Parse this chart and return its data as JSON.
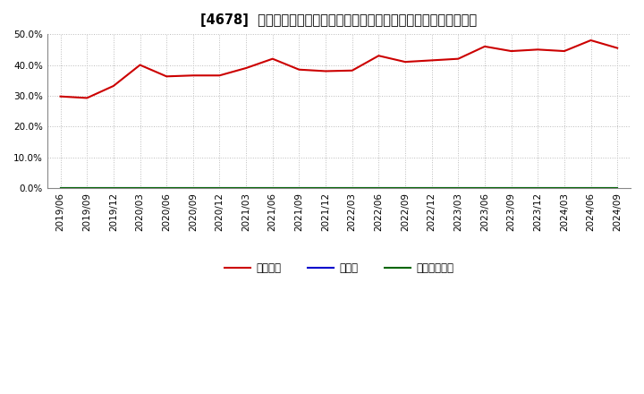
{
  "title": "[4678]  自己資本、のれん、繰延税金資産の総資産に対する比率の推移",
  "x_labels": [
    "2019/06",
    "2019/09",
    "2019/12",
    "2020/03",
    "2020/06",
    "2020/09",
    "2020/12",
    "2021/03",
    "2021/06",
    "2021/09",
    "2021/12",
    "2022/03",
    "2022/06",
    "2022/09",
    "2022/12",
    "2023/03",
    "2023/06",
    "2023/09",
    "2023/12",
    "2024/03",
    "2024/06",
    "2024/09"
  ],
  "jiko_shihon": [
    0.298,
    0.293,
    0.332,
    0.4,
    0.363,
    0.366,
    0.366,
    0.39,
    0.42,
    0.385,
    0.38,
    0.382,
    0.43,
    0.41,
    0.415,
    0.42,
    0.46,
    0.445,
    0.45,
    0.445,
    0.48,
    0.455
  ],
  "noren": [
    0,
    0,
    0,
    0,
    0,
    0,
    0,
    0,
    0,
    0,
    0,
    0,
    0,
    0,
    0,
    0,
    0,
    0,
    0,
    0,
    0,
    0
  ],
  "kurinobe": [
    0,
    0,
    0,
    0,
    0,
    0,
    0,
    0,
    0,
    0,
    0,
    0,
    0,
    0,
    0,
    0,
    0,
    0,
    0,
    0,
    0,
    0
  ],
  "line_colors": {
    "jiko_shihon": "#cc0000",
    "noren": "#0000cc",
    "kurinobe": "#006600"
  },
  "legend_labels": {
    "jiko_shihon": "自己資本",
    "noren": "のれん",
    "kurinobe": "繰延税金資産"
  },
  "ylim": [
    0.0,
    0.5
  ],
  "yticks": [
    0.0,
    0.1,
    0.2,
    0.3,
    0.4,
    0.5
  ],
  "background_color": "#ffffff",
  "grid_color": "#bbbbbb",
  "title_fontsize": 10.5,
  "tick_fontsize": 7.5,
  "legend_fontsize": 8.5
}
